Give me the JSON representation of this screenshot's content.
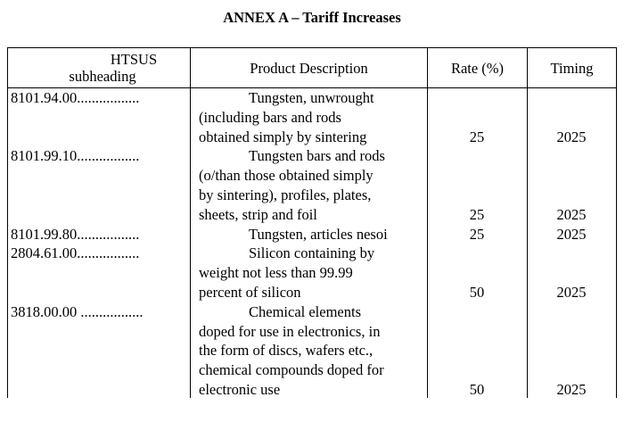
{
  "title": "ANNEX A – Tariff Increases",
  "headers": {
    "code_line1": "HTSUS",
    "code_line2": "subheading",
    "description": "Product Description",
    "rate": "Rate (%)",
    "timing": "Timing"
  },
  "rows": [
    {
      "code": "8101.94.00.................",
      "description": "Tungsten, unwrought\n(including bars and rods\nobtained simply by sintering",
      "rate": "25",
      "timing": "2025"
    },
    {
      "code": "8101.99.10.................",
      "description": "Tungsten bars and rods\n(o/than those obtained simply\nby sintering), profiles, plates,\nsheets, strip and foil",
      "rate": "25",
      "timing": "2025"
    },
    {
      "code": "8101.99.80.................",
      "description": "Tungsten, articles nesoi",
      "rate": "25",
      "timing": "2025"
    },
    {
      "code": "2804.61.00.................",
      "description": "Silicon containing by\nweight not less than 99.99\npercent of silicon",
      "rate": "50",
      "timing": "2025"
    },
    {
      "code": "3818.00.00 .................",
      "description": "Chemical elements\ndoped for use in electronics, in\nthe form of discs, wafers etc.,\nchemical compounds doped for\nelectronic use",
      "rate": "50",
      "timing": "2025"
    }
  ]
}
